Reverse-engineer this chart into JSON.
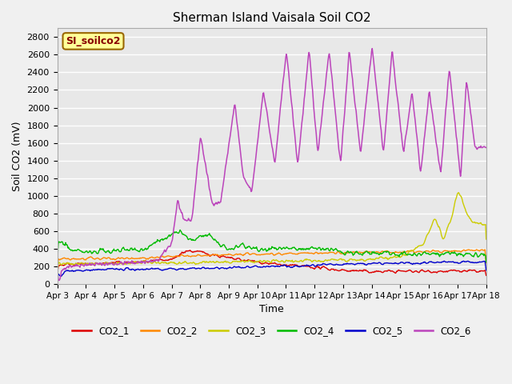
{
  "title": "Sherman Island Vaisala Soil CO2",
  "ylabel": "Soil CO2 (mV)",
  "xlabel": "Time",
  "ylim": [
    0,
    2900
  ],
  "yticks": [
    0,
    200,
    400,
    600,
    800,
    1000,
    1200,
    1400,
    1600,
    1800,
    2000,
    2200,
    2400,
    2600,
    2800
  ],
  "xlim_days": [
    0,
    15
  ],
  "x_tick_labels": [
    "Apr 3",
    "Apr 4",
    "Apr 5",
    "Apr 6",
    "Apr 7",
    "Apr 8",
    "Apr 9",
    "Apr 10",
    "Apr 11",
    "Apr 12",
    "Apr 13",
    "Apr 14",
    "Apr 15",
    "Apr 16",
    "Apr 17",
    "Apr 18"
  ],
  "x_tick_positions": [
    0,
    1,
    2,
    3,
    4,
    5,
    6,
    7,
    8,
    9,
    10,
    11,
    12,
    13,
    14,
    15
  ],
  "bg_color": "#e8e8e8",
  "fig_color": "#f0f0f0",
  "legend_label": "SI_soilco2",
  "legend_bg": "#ffff99",
  "legend_border": "#996600",
  "series": [
    {
      "name": "CO2_1",
      "color": "#dd0000"
    },
    {
      "name": "CO2_2",
      "color": "#ff8800"
    },
    {
      "name": "CO2_3",
      "color": "#cccc00"
    },
    {
      "name": "CO2_4",
      "color": "#00bb00"
    },
    {
      "name": "CO2_5",
      "color": "#0000cc"
    },
    {
      "name": "CO2_6",
      "color": "#bb44bb"
    }
  ]
}
